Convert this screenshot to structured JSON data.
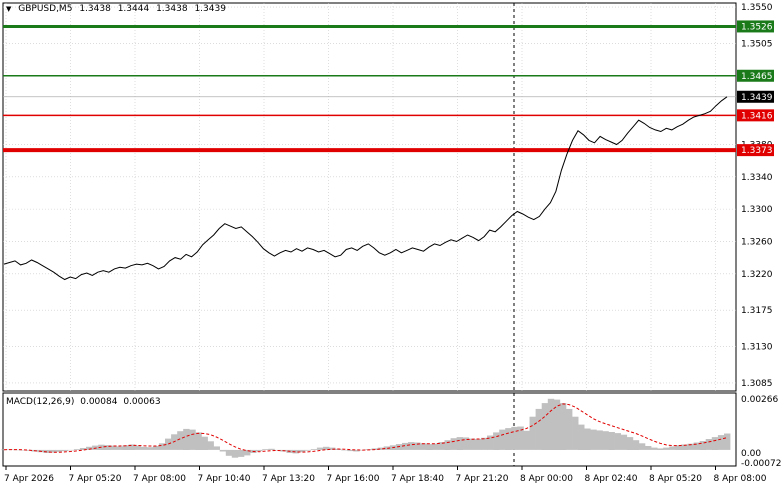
{
  "header": {
    "dropdown_icon": "triangle-down-icon",
    "symbol": "GBPUSD,M5",
    "open": "1.3438",
    "high": "1.3444",
    "low": "1.3438",
    "close": "1.3439"
  },
  "macd": {
    "label": "MACD(12,26,9)",
    "main": "0.00084",
    "signal": "0.00063",
    "axis_top": "0.00266",
    "axis_zero": "0.00",
    "axis_bottom": "-0.00072"
  },
  "colors": {
    "price_line": "#000000",
    "green_level": "#1a7a1a",
    "red_level": "#e00000",
    "current_price_bg": "#000000",
    "macd_hist": "#c0c0c0",
    "macd_signal": "#e00000",
    "grid": "#c8c8c8"
  },
  "chart_data": {
    "type": "line",
    "symbol": "GBPUSD",
    "timeframe": "M5",
    "y_ticks": [
      "1.3550",
      "1.3505",
      "1.3465",
      "1.3439",
      "1.3416",
      "1.3380",
      "1.3340",
      "1.3300",
      "1.3260",
      "1.3220",
      "1.3175",
      "1.3130",
      "1.3085"
    ],
    "x_ticks": [
      "7 Apr 2026",
      "7 Apr 05:20",
      "7 Apr 08:00",
      "7 Apr 10:40",
      "7 Apr 13:20",
      "7 Apr 16:00",
      "7 Apr 18:40",
      "7 Apr 21:20",
      "8 Apr 00:00",
      "8 Apr 02:40",
      "8 Apr 05:20",
      "8 Apr 08:00"
    ],
    "ylim": [
      1.3075,
      1.3555
    ],
    "levels": [
      {
        "value": 1.3526,
        "label": "1.3526",
        "color": "green"
      },
      {
        "value": 1.3465,
        "label": "1.3465",
        "color": "green"
      },
      {
        "value": 1.3416,
        "label": "1.3416",
        "color": "red"
      },
      {
        "value": 1.3373,
        "label": "1.3373",
        "color": "red"
      }
    ],
    "current_price": {
      "value": 1.3439,
      "label": "1.3439"
    },
    "series": [
      {
        "values": [
          1.3232,
          1.3234,
          1.3236,
          1.3231,
          1.3233,
          1.3237,
          1.3234,
          1.323,
          1.3226,
          1.3222,
          1.3217,
          1.3213,
          1.3216,
          1.3214,
          1.3219,
          1.3221,
          1.3218,
          1.3222,
          1.3224,
          1.3222,
          1.3226,
          1.3228,
          1.3227,
          1.323,
          1.3232,
          1.3231,
          1.3233,
          1.323,
          1.3226,
          1.3229,
          1.3236,
          1.324,
          1.3238,
          1.3244,
          1.3241,
          1.3247,
          1.3256,
          1.3262,
          1.3268,
          1.3276,
          1.3282,
          1.3279,
          1.3276,
          1.3278,
          1.3272,
          1.3266,
          1.3259,
          1.3251,
          1.3246,
          1.3242,
          1.3246,
          1.3249,
          1.3247,
          1.3251,
          1.3248,
          1.3252,
          1.325,
          1.3247,
          1.3249,
          1.3245,
          1.3241,
          1.3243,
          1.325,
          1.3252,
          1.3249,
          1.3254,
          1.3257,
          1.3252,
          1.3246,
          1.3243,
          1.3246,
          1.325,
          1.3246,
          1.3249,
          1.3252,
          1.325,
          1.3248,
          1.3253,
          1.3257,
          1.3255,
          1.3259,
          1.3262,
          1.326,
          1.3264,
          1.3268,
          1.3265,
          1.3261,
          1.3266,
          1.3274,
          1.3272,
          1.3278,
          1.3285,
          1.3292,
          1.3297,
          1.3294,
          1.329,
          1.3287,
          1.3291,
          1.33,
          1.3308,
          1.3322,
          1.3348,
          1.3368,
          1.3385,
          1.3397,
          1.3392,
          1.3385,
          1.3382,
          1.339,
          1.3386,
          1.3383,
          1.338,
          1.3385,
          1.3394,
          1.3402,
          1.341,
          1.3406,
          1.3401,
          1.3398,
          1.3396,
          1.34,
          1.3398,
          1.3402,
          1.3405,
          1.341,
          1.3414,
          1.3416,
          1.3418,
          1.3421,
          1.3428,
          1.3434,
          1.3439
        ]
      }
    ],
    "macd_hist": [
      2e-05,
      3e-05,
      1e-05,
      0.0,
      -4e-05,
      -8e-05,
      -0.00012,
      -0.00016,
      -0.00014,
      -0.0001,
      -6e-05,
      -2e-05,
      4e-05,
      0.0001,
      0.00016,
      0.00022,
      0.00027,
      0.00025,
      0.00022,
      0.00018,
      0.00024,
      0.00028,
      0.00022,
      0.00016,
      0.00014,
      0.0002,
      0.00034,
      0.00058,
      0.0008,
      0.00096,
      0.00108,
      0.00104,
      0.0009,
      0.00068,
      0.00044,
      0.00018,
      -8e-05,
      -0.0003,
      -0.0004,
      -0.00036,
      -0.00028,
      -0.00016,
      -6e-05,
      4e-05,
      6e-05,
      0.0,
      -8e-05,
      -0.00016,
      -0.00018,
      -0.00012,
      -4e-05,
      4e-05,
      0.00012,
      0.00016,
      0.00012,
      6e-05,
      0.0,
      -6e-05,
      -8e-05,
      -2e-05,
      4e-05,
      8e-05,
      0.00012,
      0.00018,
      0.00024,
      0.0003,
      0.00036,
      0.0004,
      0.00038,
      0.00034,
      0.0003,
      0.00032,
      0.0004,
      0.0005,
      0.0006,
      0.00066,
      0.00064,
      0.00058,
      0.00056,
      0.00062,
      0.00074,
      0.0009,
      0.00104,
      0.00112,
      0.00118,
      0.0012,
      0.00098,
      0.0017,
      0.0021,
      0.0024,
      0.00262,
      0.00258,
      0.0024,
      0.0021,
      0.0017,
      0.0013,
      0.0011,
      0.00104,
      0.001,
      0.00096,
      0.00092,
      0.00086,
      0.00078,
      0.00066,
      0.0005,
      0.00034,
      0.0002,
      0.00012,
      8e-05,
      0.00012,
      0.00018,
      0.00024,
      0.00028,
      0.00032,
      0.00038,
      0.00046,
      0.00056,
      0.00066,
      0.00076,
      0.00084
    ],
    "macd_signal": [
      1e-05,
      2e-05,
      2e-05,
      1e-05,
      -1e-05,
      -4e-05,
      -7e-05,
      -0.0001,
      -0.00012,
      -0.00012,
      -0.0001,
      -8e-05,
      -5e-05,
      -1e-05,
      4e-05,
      9e-05,
      0.00014,
      0.00018,
      0.0002,
      0.0002,
      0.00021,
      0.00023,
      0.00023,
      0.00021,
      0.0002,
      0.0002,
      0.00023,
      0.0003,
      0.00042,
      0.00057,
      0.0007,
      0.0008,
      0.00085,
      0.00084,
      0.00078,
      0.00066,
      0.0005,
      0.00032,
      0.00016,
      4e-05,
      -4e-05,
      -8e-05,
      -9e-05,
      -6e-05,
      -4e-05,
      -3e-05,
      -4e-05,
      -7e-05,
      -0.0001,
      -0.00011,
      -0.0001,
      -7e-05,
      -3e-05,
      1e-05,
      4e-05,
      5e-05,
      4e-05,
      2e-05,
      0.0,
      -1e-05,
      0.0,
      2e-05,
      5e-05,
      8e-05,
      0.00012,
      0.00017,
      0.00022,
      0.00027,
      0.0003,
      0.00032,
      0.00032,
      0.00032,
      0.00034,
      0.00038,
      0.00043,
      0.00049,
      0.00053,
      0.00055,
      0.00056,
      0.00057,
      0.00061,
      0.00068,
      0.00077,
      0.00086,
      0.00094,
      0.00101,
      0.0011,
      0.00125,
      0.00146,
      0.00171,
      0.002,
      0.00224,
      0.00236,
      0.00232,
      0.0022,
      0.002,
      0.0018,
      0.0016,
      0.00145,
      0.00134,
      0.00124,
      0.00114,
      0.00104,
      0.00094,
      0.00084,
      0.00072,
      0.00058,
      0.00045,
      0.00034,
      0.00026,
      0.00022,
      0.00022,
      0.00024,
      0.00027,
      0.0003,
      0.00035,
      0.00041,
      0.00048,
      0.00055,
      0.00063
    ]
  }
}
